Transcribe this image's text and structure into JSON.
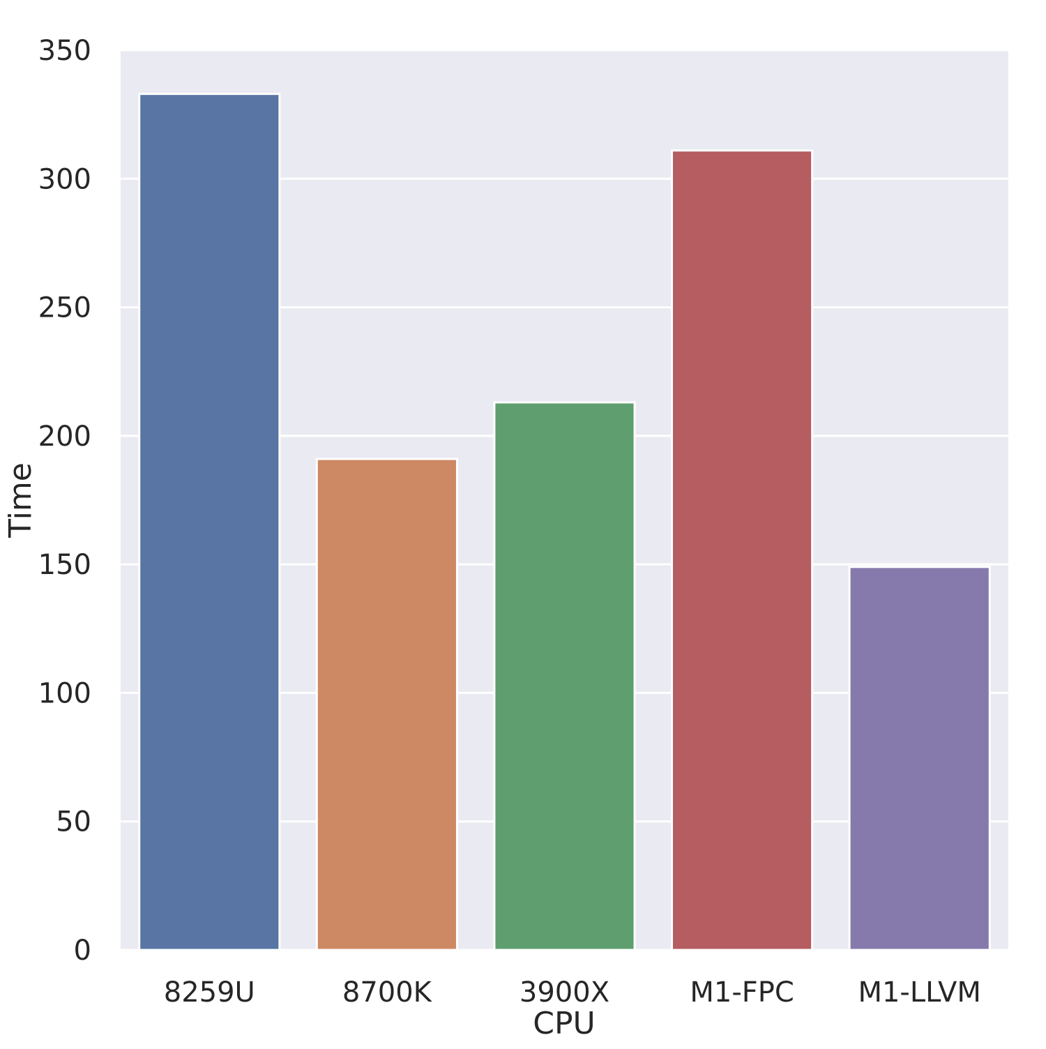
{
  "chart_data": {
    "type": "bar",
    "title": "",
    "xlabel": "CPU",
    "ylabel": "Time",
    "categories": [
      "8259U",
      "8700K",
      "3900X",
      "M1-FPC",
      "M1-LLVM"
    ],
    "values": [
      333,
      191,
      213,
      311,
      149
    ],
    "ylim": [
      0,
      350
    ],
    "yticks": [
      "0",
      "50",
      "100",
      "150",
      "200",
      "250",
      "300",
      "350"
    ],
    "ytick_values": [
      0,
      50,
      100,
      150,
      200,
      250,
      300,
      350
    ],
    "colors": [
      "#5875a4",
      "#cc8963",
      "#5f9e6e",
      "#b55d60",
      "#857aab"
    ],
    "background_color": "#eaeaf2",
    "grid": true,
    "grid_color": "#ffffff",
    "legend": "none"
  }
}
